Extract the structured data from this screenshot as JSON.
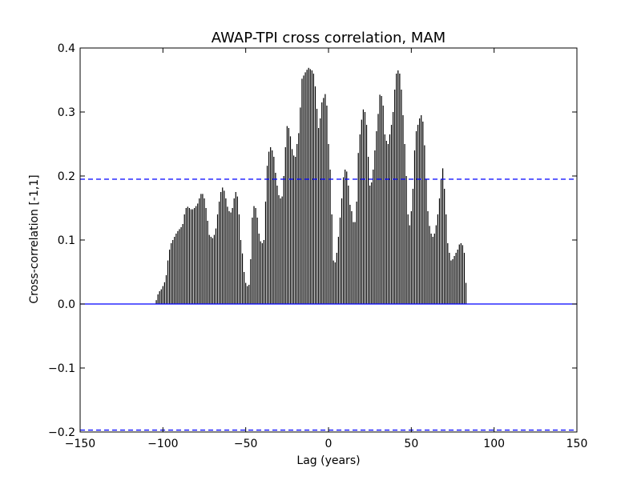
{
  "chart_data": {
    "type": "bar",
    "title": "AWAP-TPI cross correlation, MAM",
    "xlabel": "Lag (years)",
    "ylabel": "Cross-correlation [-1,1]",
    "xlim": [
      -150,
      150
    ],
    "ylim": [
      -0.2,
      0.4
    ],
    "xticks": [
      -150,
      -100,
      -50,
      0,
      50,
      100,
      150
    ],
    "xtick_labels": [
      "−150",
      "−100",
      "−50",
      "0",
      "50",
      "100",
      "150"
    ],
    "yticks": [
      -0.2,
      -0.1,
      0.0,
      0.1,
      0.2,
      0.3,
      0.4
    ],
    "ytick_labels": [
      "−0.2",
      "−0.1",
      "0.0",
      "0.1",
      "0.2",
      "0.3",
      "0.4"
    ],
    "zero_line": {
      "y": 0.0,
      "color": "#0000ff"
    },
    "confidence_lines": {
      "values": [
        0.195,
        -0.197
      ],
      "color": "#0000ff",
      "style": "dashed"
    },
    "bar_color": "#000000",
    "x_start": -104,
    "x_step": 1,
    "values": [
      0.006,
      0.015,
      0.02,
      0.023,
      0.028,
      0.034,
      0.045,
      0.068,
      0.085,
      0.095,
      0.1,
      0.105,
      0.11,
      0.114,
      0.117,
      0.12,
      0.125,
      0.14,
      0.15,
      0.152,
      0.15,
      0.148,
      0.148,
      0.15,
      0.153,
      0.157,
      0.165,
      0.172,
      0.172,
      0.165,
      0.15,
      0.13,
      0.108,
      0.105,
      0.103,
      0.108,
      0.118,
      0.14,
      0.16,
      0.175,
      0.182,
      0.177,
      0.165,
      0.152,
      0.145,
      0.143,
      0.15,
      0.165,
      0.175,
      0.168,
      0.14,
      0.1,
      0.079,
      0.05,
      0.033,
      0.028,
      0.03,
      0.07,
      0.135,
      0.153,
      0.15,
      0.135,
      0.11,
      0.098,
      0.095,
      0.1,
      0.16,
      0.216,
      0.238,
      0.245,
      0.24,
      0.23,
      0.205,
      0.185,
      0.17,
      0.165,
      0.168,
      0.2,
      0.245,
      0.278,
      0.275,
      0.262,
      0.242,
      0.232,
      0.23,
      0.25,
      0.267,
      0.307,
      0.352,
      0.357,
      0.362,
      0.366,
      0.369,
      0.367,
      0.365,
      0.36,
      0.34,
      0.305,
      0.275,
      0.29,
      0.315,
      0.322,
      0.328,
      0.31,
      0.25,
      0.21,
      0.14,
      0.068,
      0.065,
      0.08,
      0.105,
      0.135,
      0.165,
      0.198,
      0.21,
      0.207,
      0.185,
      0.155,
      0.145,
      0.128,
      0.128,
      0.16,
      0.236,
      0.265,
      0.288,
      0.304,
      0.3,
      0.28,
      0.23,
      0.185,
      0.19,
      0.21,
      0.24,
      0.27,
      0.297,
      0.327,
      0.325,
      0.31,
      0.265,
      0.255,
      0.25,
      0.265,
      0.28,
      0.3,
      0.335,
      0.36,
      0.365,
      0.36,
      0.335,
      0.295,
      0.25,
      0.2,
      0.14,
      0.123,
      0.145,
      0.18,
      0.24,
      0.27,
      0.28,
      0.29,
      0.295,
      0.285,
      0.248,
      0.195,
      0.145,
      0.122,
      0.11,
      0.105,
      0.11,
      0.123,
      0.14,
      0.165,
      0.195,
      0.212,
      0.18,
      0.14,
      0.095,
      0.08,
      0.068,
      0.07,
      0.075,
      0.08,
      0.085,
      0.093,
      0.095,
      0.092,
      0.08,
      0.033
    ]
  }
}
